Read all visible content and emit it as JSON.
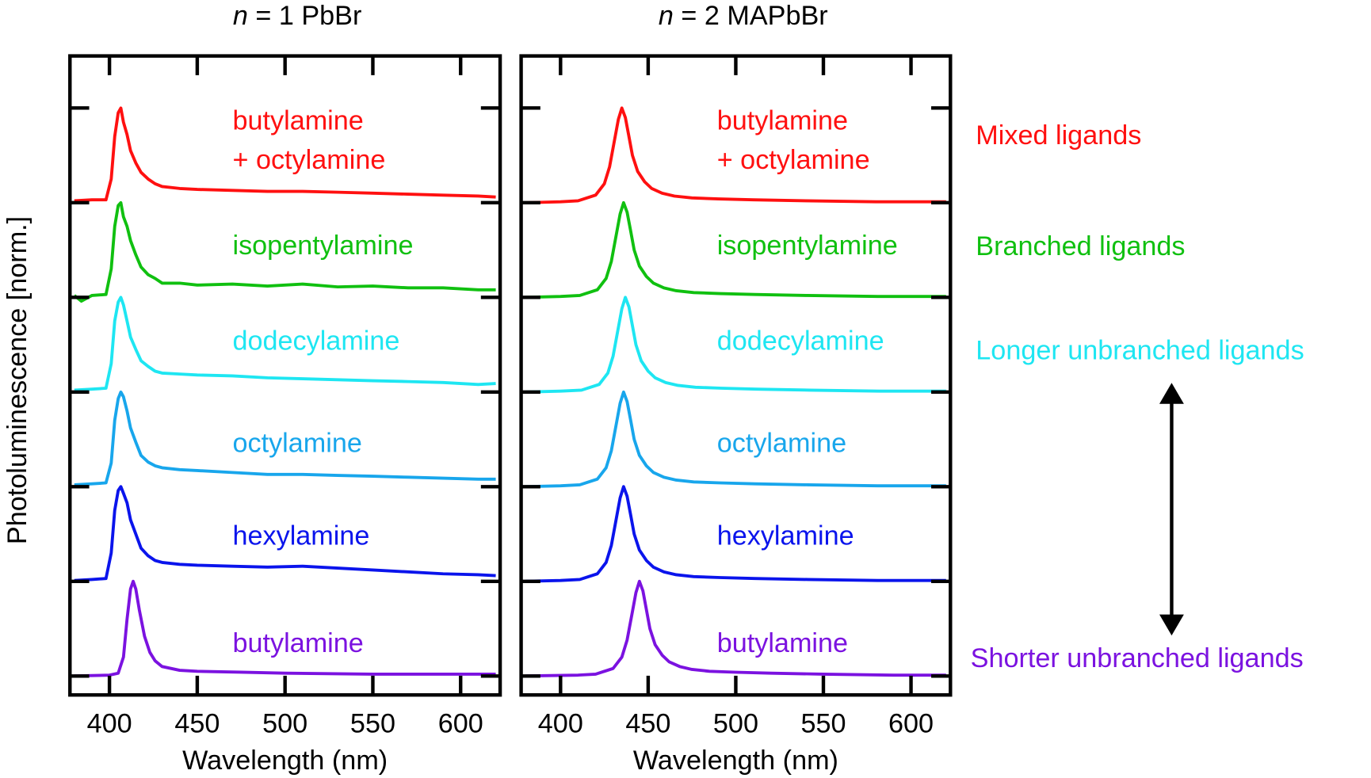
{
  "chart_data": [
    {
      "type": "line",
      "title_italic": "n",
      "title_rest": " = 1 PbBr",
      "xlabel": "Wavelength (nm)",
      "ylabel": "Photoluminescence [norm.]",
      "xlim": [
        377.5,
        622.5
      ],
      "ylim": [
        -0.2,
        6.55
      ],
      "xticks": [
        400,
        450,
        500,
        550,
        600
      ],
      "xtick_labels": [
        "400",
        "450",
        "500",
        "550",
        "600"
      ],
      "yticks": [
        0,
        1,
        2,
        3,
        4,
        5,
        6
      ],
      "offset_step": 1,
      "series": [
        {
          "name": "butylamine",
          "label_lines": [
            "butylamine"
          ],
          "color": "#7b12e0",
          "offset": 0,
          "x": [
            380,
            400,
            405,
            408,
            410,
            412,
            413.5,
            415,
            417,
            420,
            423,
            426,
            430,
            440,
            450,
            475,
            500,
            550,
            600,
            620
          ],
          "y": [
            0,
            0.01,
            0.03,
            0.2,
            0.6,
            0.92,
            1.0,
            0.92,
            0.7,
            0.42,
            0.25,
            0.16,
            0.1,
            0.06,
            0.05,
            0.04,
            0.03,
            0.02,
            0.02,
            0.02
          ]
        },
        {
          "name": "hexylamine",
          "label_lines": [
            "hexylamine"
          ],
          "color": "#0a14ec",
          "offset": 1,
          "x": [
            380,
            390,
            398,
            401,
            403,
            405,
            406.5,
            408,
            410,
            412,
            415,
            418,
            422,
            426,
            430,
            440,
            450,
            470,
            490,
            510,
            530,
            550,
            570,
            590,
            610,
            620
          ],
          "y": [
            0.01,
            0.02,
            0.03,
            0.3,
            0.75,
            0.96,
            1.0,
            0.93,
            0.83,
            0.65,
            0.5,
            0.35,
            0.27,
            0.22,
            0.2,
            0.18,
            0.17,
            0.16,
            0.15,
            0.16,
            0.14,
            0.12,
            0.1,
            0.08,
            0.07,
            0.06
          ]
        },
        {
          "name": "octylamine",
          "label_lines": [
            "octylamine"
          ],
          "color": "#18a6ec",
          "offset": 2,
          "x": [
            380,
            390,
            398,
            401,
            403,
            405,
            406.5,
            408,
            410,
            412,
            415,
            418,
            422,
            426,
            430,
            440,
            450,
            470,
            490,
            510,
            530,
            550,
            570,
            590,
            610,
            620
          ],
          "y": [
            0.02,
            0.03,
            0.04,
            0.25,
            0.7,
            0.93,
            1.0,
            0.95,
            0.8,
            0.62,
            0.47,
            0.33,
            0.26,
            0.22,
            0.2,
            0.18,
            0.17,
            0.15,
            0.13,
            0.13,
            0.12,
            0.11,
            0.1,
            0.09,
            0.08,
            0.08
          ]
        },
        {
          "name": "dodecylamine",
          "label_lines": [
            "dodecylamine"
          ],
          "color": "#1ee6f2",
          "offset": 3,
          "x": [
            380,
            390,
            398,
            401,
            403,
            405,
            406.5,
            408,
            410,
            412,
            415,
            418,
            422,
            426,
            430,
            440,
            450,
            470,
            490,
            510,
            530,
            550,
            570,
            590,
            610,
            620
          ],
          "y": [
            0.02,
            0.03,
            0.04,
            0.3,
            0.75,
            0.95,
            1.0,
            0.92,
            0.75,
            0.58,
            0.45,
            0.33,
            0.27,
            0.22,
            0.2,
            0.19,
            0.18,
            0.17,
            0.15,
            0.14,
            0.13,
            0.12,
            0.11,
            0.1,
            0.08,
            0.09
          ]
        },
        {
          "name": "isopentylamine",
          "label_lines": [
            "isopentylamine"
          ],
          "color": "#10c010",
          "offset": 4,
          "x": [
            380,
            384,
            390,
            398,
            401,
            403,
            405,
            406.5,
            408,
            410,
            412,
            415,
            418,
            422,
            426,
            430,
            440,
            450,
            470,
            490,
            510,
            530,
            550,
            570,
            590,
            610,
            620
          ],
          "y": [
            0.02,
            -0.04,
            0.02,
            0.03,
            0.3,
            0.75,
            0.97,
            1.0,
            0.85,
            0.75,
            0.6,
            0.45,
            0.32,
            0.24,
            0.2,
            0.15,
            0.15,
            0.13,
            0.14,
            0.12,
            0.14,
            0.11,
            0.12,
            0.1,
            0.1,
            0.08,
            0.08
          ]
        },
        {
          "name": "butylamine + octylamine",
          "label_lines": [
            "butylamine",
            "+ octylamine"
          ],
          "color": "#ff1010",
          "offset": 5,
          "x": [
            380,
            390,
            398,
            401,
            403,
            405,
            406.5,
            408,
            410,
            412,
            415,
            418,
            422,
            426,
            430,
            440,
            450,
            470,
            490,
            510,
            530,
            550,
            570,
            590,
            610,
            620
          ],
          "y": [
            0.02,
            0.03,
            0.03,
            0.25,
            0.7,
            0.95,
            1.0,
            0.85,
            0.72,
            0.55,
            0.42,
            0.32,
            0.25,
            0.2,
            0.17,
            0.15,
            0.14,
            0.13,
            0.12,
            0.12,
            0.11,
            0.1,
            0.09,
            0.08,
            0.07,
            0.06
          ]
        }
      ]
    },
    {
      "type": "line",
      "title_italic": "n",
      "title_rest": " = 2 MAPbBr",
      "xlabel": "Wavelength (nm)",
      "xlim": [
        377.5,
        622.5
      ],
      "ylim": [
        -0.2,
        6.55
      ],
      "xticks": [
        400,
        450,
        500,
        550,
        600
      ],
      "xtick_labels": [
        "400",
        "450",
        "500",
        "550",
        "600"
      ],
      "yticks": [
        0,
        1,
        2,
        3,
        4,
        5,
        6
      ],
      "offset_step": 1,
      "series": [
        {
          "name": "butylamine",
          "label_lines": [
            "butylamine"
          ],
          "color": "#7b12e0",
          "offset": 0,
          "x": [
            380,
            410,
            420,
            430,
            435,
            438,
            441,
            443,
            445,
            447,
            449,
            451,
            454,
            458,
            462,
            468,
            475,
            485,
            500,
            520,
            550,
            590,
            620
          ],
          "y": [
            0,
            0.01,
            0.02,
            0.08,
            0.2,
            0.38,
            0.68,
            0.88,
            1.0,
            0.9,
            0.7,
            0.5,
            0.33,
            0.22,
            0.15,
            0.1,
            0.07,
            0.05,
            0.04,
            0.03,
            0.02,
            0.01,
            0.01
          ]
        },
        {
          "name": "hexylamine",
          "label_lines": [
            "hexylamine"
          ],
          "color": "#0a14ec",
          "offset": 1,
          "x": [
            380,
            400,
            411,
            421,
            426,
            429,
            432,
            434,
            436,
            438,
            440,
            442,
            445,
            449,
            453,
            459,
            466,
            476,
            491,
            511,
            541,
            581,
            620
          ],
          "y": [
            0,
            0.01,
            0.02,
            0.08,
            0.2,
            0.38,
            0.68,
            0.88,
            1.0,
            0.9,
            0.7,
            0.5,
            0.33,
            0.22,
            0.15,
            0.1,
            0.07,
            0.05,
            0.04,
            0.03,
            0.02,
            0.01,
            0.01
          ]
        },
        {
          "name": "octylamine",
          "label_lines": [
            "octylamine"
          ],
          "color": "#18a6ec",
          "offset": 2,
          "x": [
            380,
            400,
            411,
            421,
            426,
            429,
            432,
            434,
            436,
            438,
            440,
            442,
            445,
            449,
            453,
            459,
            466,
            476,
            491,
            511,
            541,
            581,
            620
          ],
          "y": [
            0,
            0.01,
            0.02,
            0.08,
            0.2,
            0.38,
            0.68,
            0.88,
            1.0,
            0.9,
            0.7,
            0.5,
            0.33,
            0.22,
            0.15,
            0.1,
            0.07,
            0.05,
            0.04,
            0.03,
            0.02,
            0.01,
            0.01
          ]
        },
        {
          "name": "dodecylamine",
          "label_lines": [
            "dodecylamine"
          ],
          "color": "#1ee6f2",
          "offset": 3,
          "x": [
            380,
            400,
            412,
            422,
            427,
            430,
            433,
            435,
            437,
            439,
            441,
            443,
            446,
            450,
            454,
            460,
            467,
            477,
            492,
            512,
            542,
            582,
            620
          ],
          "y": [
            0,
            0.01,
            0.02,
            0.08,
            0.2,
            0.38,
            0.68,
            0.88,
            1.0,
            0.9,
            0.7,
            0.5,
            0.33,
            0.22,
            0.15,
            0.1,
            0.07,
            0.05,
            0.04,
            0.03,
            0.02,
            0.01,
            0.01
          ]
        },
        {
          "name": "isopentylamine",
          "label_lines": [
            "isopentylamine"
          ],
          "color": "#10c010",
          "offset": 4,
          "x": [
            380,
            400,
            411,
            421,
            426,
            429,
            432,
            434,
            436,
            438,
            440,
            442,
            445,
            449,
            453,
            459,
            466,
            476,
            491,
            511,
            541,
            581,
            620
          ],
          "y": [
            0,
            0.01,
            0.02,
            0.08,
            0.2,
            0.38,
            0.68,
            0.88,
            1.0,
            0.9,
            0.7,
            0.5,
            0.33,
            0.22,
            0.15,
            0.1,
            0.07,
            0.05,
            0.04,
            0.03,
            0.02,
            0.01,
            0.01
          ]
        },
        {
          "name": "butylamine + octylamine",
          "label_lines": [
            "butylamine",
            "+ octylamine"
          ],
          "color": "#ff1010",
          "offset": 5,
          "x": [
            380,
            400,
            410,
            420,
            425,
            428,
            431,
            433,
            435,
            437,
            439,
            441,
            444,
            448,
            452,
            458,
            465,
            475,
            490,
            510,
            540,
            580,
            620
          ],
          "y": [
            0,
            0.01,
            0.02,
            0.08,
            0.2,
            0.38,
            0.68,
            0.88,
            1.0,
            0.9,
            0.7,
            0.5,
            0.33,
            0.22,
            0.15,
            0.1,
            0.07,
            0.05,
            0.04,
            0.03,
            0.02,
            0.01,
            0.01
          ]
        }
      ]
    }
  ],
  "annotations": {
    "categories": [
      {
        "label": "Mixed ligands",
        "color": "#ff1010"
      },
      {
        "label": "Branched ligands",
        "color": "#10c010"
      },
      {
        "label": "Longer unbranched ligands",
        "color": "#1ee6f2"
      },
      {
        "label": "Shorter unbranched ligands",
        "color": "#7b12e0"
      }
    ],
    "arrow": "double-headed-vertical-arrow"
  }
}
